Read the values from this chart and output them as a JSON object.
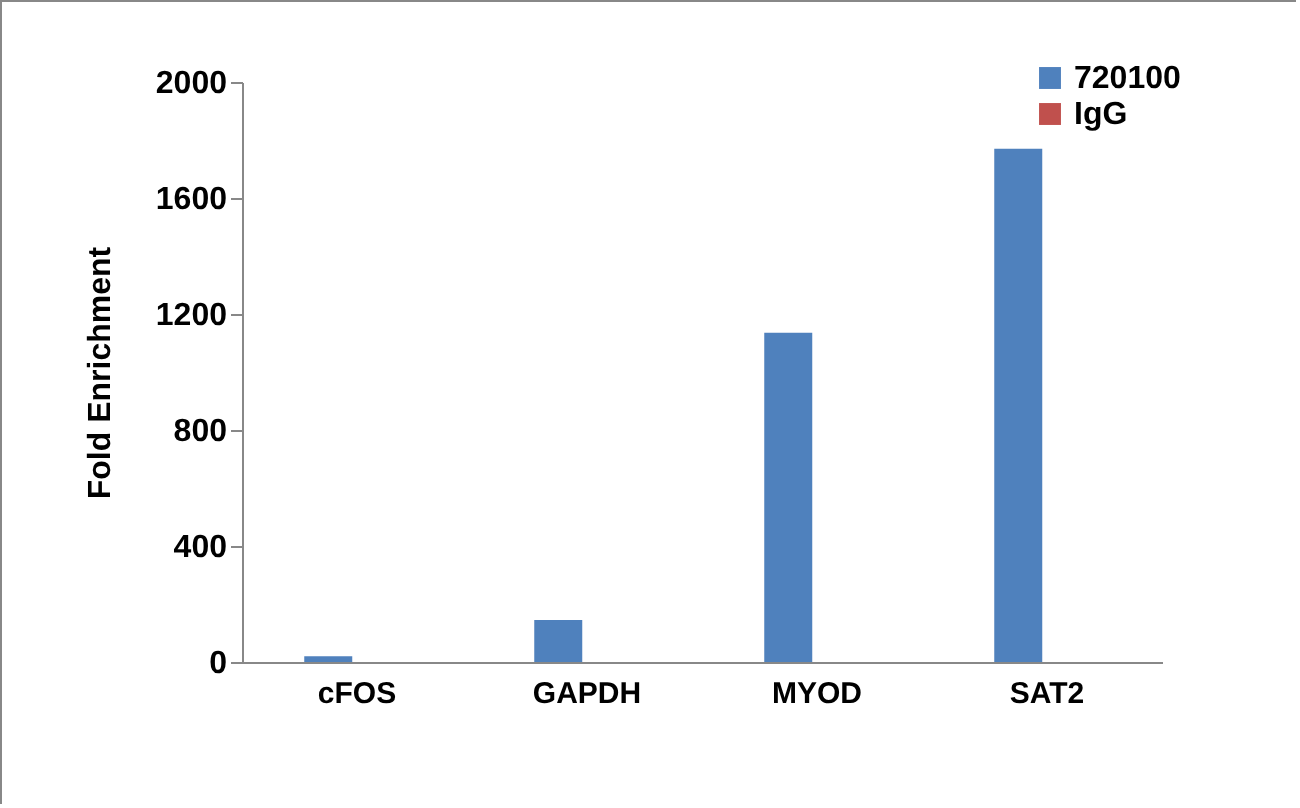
{
  "chart_data": {
    "type": "bar",
    "ylabel": "Fold Enrichment",
    "categories": [
      "cFOS",
      "GAPDH",
      "MYOD",
      "SAT2"
    ],
    "series": [
      {
        "name": "720100",
        "color": "#4f81bd",
        "values": [
          20,
          145,
          1135,
          1770
        ]
      },
      {
        "name": "IgG",
        "color": "#c0504d",
        "values": [
          0,
          0,
          0,
          0
        ]
      }
    ],
    "ylim": [
      0,
      2000
    ],
    "yticks": [
      0,
      400,
      800,
      1200,
      1600,
      2000
    ],
    "grid": false,
    "legend": "top right"
  }
}
